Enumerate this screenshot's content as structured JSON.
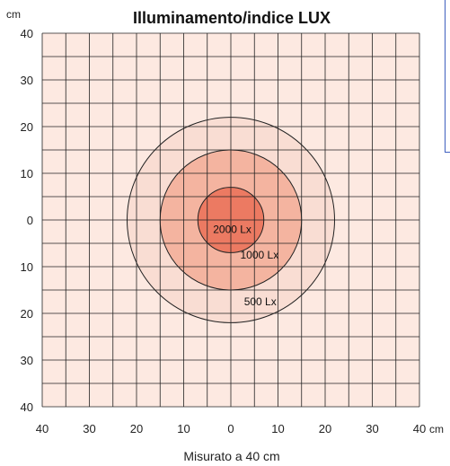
{
  "chart_data": {
    "type": "heatmap",
    "title": "Illuminamento/indice LUX",
    "xlabel": "Misurato a 40 cm",
    "y_unit": "cm",
    "x_unit": "cm",
    "xlim": [
      -40,
      40
    ],
    "ylim": [
      -40,
      40
    ],
    "x_tick_labels": [
      "40",
      "30",
      "20",
      "10",
      "0",
      "10",
      "20",
      "30",
      "40"
    ],
    "y_tick_labels": [
      "40",
      "30",
      "20",
      "10",
      "0",
      "10",
      "20",
      "30",
      "40"
    ],
    "grid": true,
    "grid_step": 5,
    "zones": [
      {
        "label": "500 Lx",
        "radius": 22,
        "color": "#f9ddd3"
      },
      {
        "label": "1000 Lx",
        "radius": 15,
        "color": "#f4b4a0"
      },
      {
        "label": "2000 Lx",
        "radius": 7,
        "color": "#ec7a62"
      }
    ],
    "colors": {
      "background": "#fde9e1",
      "grid": "#222222"
    }
  }
}
